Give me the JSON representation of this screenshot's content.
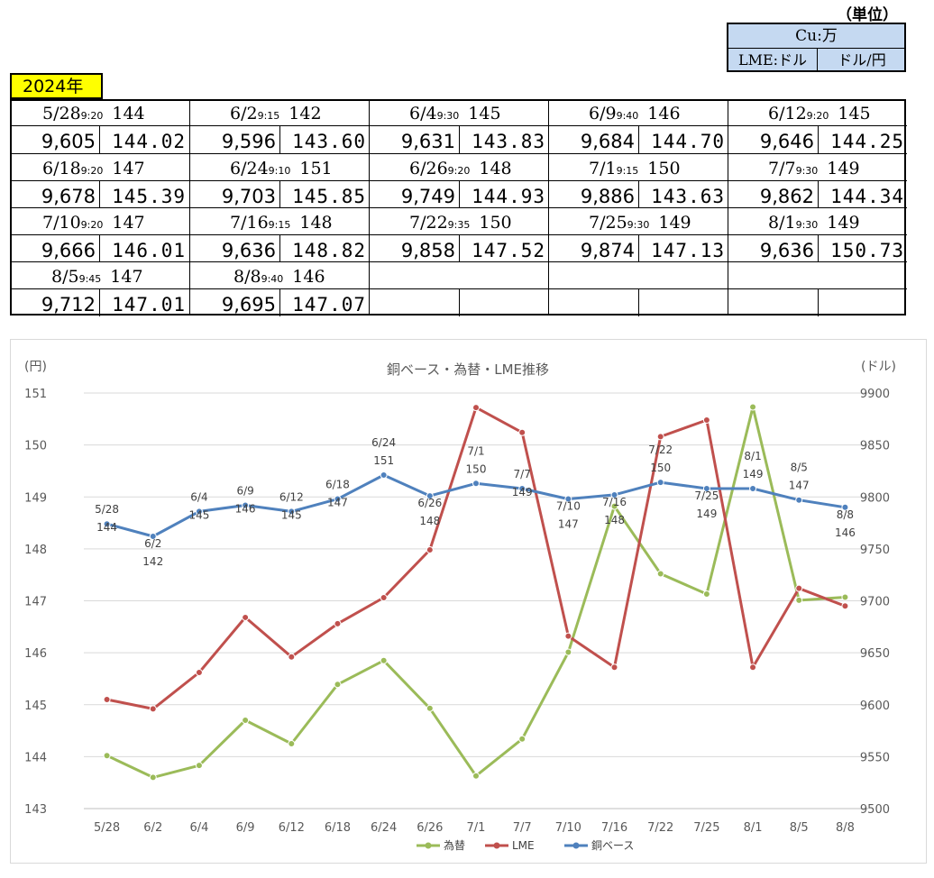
{
  "units": {
    "caption": "（単位）",
    "copper": "Cu:万",
    "lme": "LME:ドル",
    "fx": "ドル/円"
  },
  "year": "2024年",
  "table": [
    {
      "date": "5/28",
      "time": "9:20",
      "base": "144",
      "lme": "9,605",
      "fx": "144.02"
    },
    {
      "date": "6/2",
      "time": "9:15",
      "base": "142",
      "lme": "9,596",
      "fx": "143.60"
    },
    {
      "date": "6/4",
      "time": "9:30",
      "base": "145",
      "lme": "9,631",
      "fx": "143.83"
    },
    {
      "date": "6/9",
      "time": "9:40",
      "base": "146",
      "lme": "9,684",
      "fx": "144.70"
    },
    {
      "date": "6/12",
      "time": "9:20",
      "base": "145",
      "lme": "9,646",
      "fx": "144.25"
    },
    {
      "date": "6/18",
      "time": "9:20",
      "base": "147",
      "lme": "9,678",
      "fx": "145.39"
    },
    {
      "date": "6/24",
      "time": "9:10",
      "base": "151",
      "lme": "9,703",
      "fx": "145.85"
    },
    {
      "date": "6/26",
      "time": "9:20",
      "base": "148",
      "lme": "9,749",
      "fx": "144.93"
    },
    {
      "date": "7/1",
      "time": "9:15",
      "base": "150",
      "lme": "9,886",
      "fx": "143.63"
    },
    {
      "date": "7/7",
      "time": "9:30",
      "base": "149",
      "lme": "9,862",
      "fx": "144.34"
    },
    {
      "date": "7/10",
      "time": "9:20",
      "base": "147",
      "lme": "9,666",
      "fx": "146.01"
    },
    {
      "date": "7/16",
      "time": "9:15",
      "base": "148",
      "lme": "9,636",
      "fx": "148.82"
    },
    {
      "date": "7/22",
      "time": "9:35",
      "base": "150",
      "lme": "9,858",
      "fx": "147.52"
    },
    {
      "date": "7/25",
      "time": "9:30",
      "base": "149",
      "lme": "9,874",
      "fx": "147.13"
    },
    {
      "date": "8/1",
      "time": "9:30",
      "base": "149",
      "lme": "9,636",
      "fx": "150.73"
    },
    {
      "date": "8/5",
      "time": "9:45",
      "base": "147",
      "lme": "9,712",
      "fx": "147.01"
    },
    {
      "date": "8/8",
      "time": "9:40",
      "base": "146",
      "lme": "9,695",
      "fx": "147.07"
    }
  ],
  "chart_data": {
    "type": "line",
    "title": "銅ベース・為替・LME推移",
    "ylabel_left": "(円)",
    "ylabel_right": "(ドル)",
    "categories": [
      "5/28",
      "6/2",
      "6/4",
      "6/9",
      "6/12",
      "6/18",
      "6/24",
      "6/26",
      "7/1",
      "7/7",
      "7/10",
      "7/16",
      "7/22",
      "7/25",
      "8/1",
      "8/5",
      "8/8"
    ],
    "ylim_left": [
      143,
      151
    ],
    "ylim_right": [
      9500,
      9900
    ],
    "yticks_left": [
      "143",
      "144",
      "145",
      "146",
      "147",
      "148",
      "149",
      "150",
      "151"
    ],
    "yticks_right": [
      "9500",
      "9550",
      "9600",
      "9650",
      "9700",
      "9750",
      "9800",
      "9850",
      "9900"
    ],
    "grid": true,
    "legend_position": "bottom",
    "series": [
      {
        "name": "為替",
        "axis": "left",
        "color": "#9bbb59",
        "values": [
          144.02,
          143.6,
          143.83,
          144.7,
          144.25,
          145.39,
          145.85,
          144.93,
          143.63,
          144.34,
          146.01,
          148.82,
          147.52,
          147.13,
          150.73,
          147.01,
          147.07
        ]
      },
      {
        "name": "LME",
        "axis": "right",
        "color": "#c0504d",
        "values": [
          9605,
          9596,
          9631,
          9684,
          9646,
          9678,
          9703,
          9749,
          9886,
          9862,
          9666,
          9636,
          9858,
          9874,
          9636,
          9712,
          9695
        ]
      },
      {
        "name": "銅ベース",
        "axis": "right",
        "color": "#4f81bd",
        "values": [
          9774,
          9762,
          9786,
          9792,
          9786,
          9798,
          9821,
          9801,
          9813,
          9808,
          9798,
          9802,
          9814,
          9808,
          9808,
          9797,
          9790
        ]
      }
    ],
    "point_labels": [
      {
        "date": "5/28",
        "value": "144"
      },
      {
        "date": "6/2",
        "value": "142"
      },
      {
        "date": "6/4",
        "value": "145"
      },
      {
        "date": "6/9",
        "value": "146"
      },
      {
        "date": "6/12",
        "value": "145"
      },
      {
        "date": "6/18",
        "value": "147"
      },
      {
        "date": "6/24",
        "value": "151"
      },
      {
        "date": "6/26",
        "value": "148"
      },
      {
        "date": "7/1",
        "value": "150"
      },
      {
        "date": "7/7",
        "value": "149"
      },
      {
        "date": "7/10",
        "value": "147"
      },
      {
        "date": "7/16",
        "value": "148"
      },
      {
        "date": "7/22",
        "value": "150"
      },
      {
        "date": "7/25",
        "value": "149"
      },
      {
        "date": "8/1",
        "value": "149"
      },
      {
        "date": "8/5",
        "value": "147"
      },
      {
        "date": "8/8",
        "value": "146"
      }
    ]
  }
}
